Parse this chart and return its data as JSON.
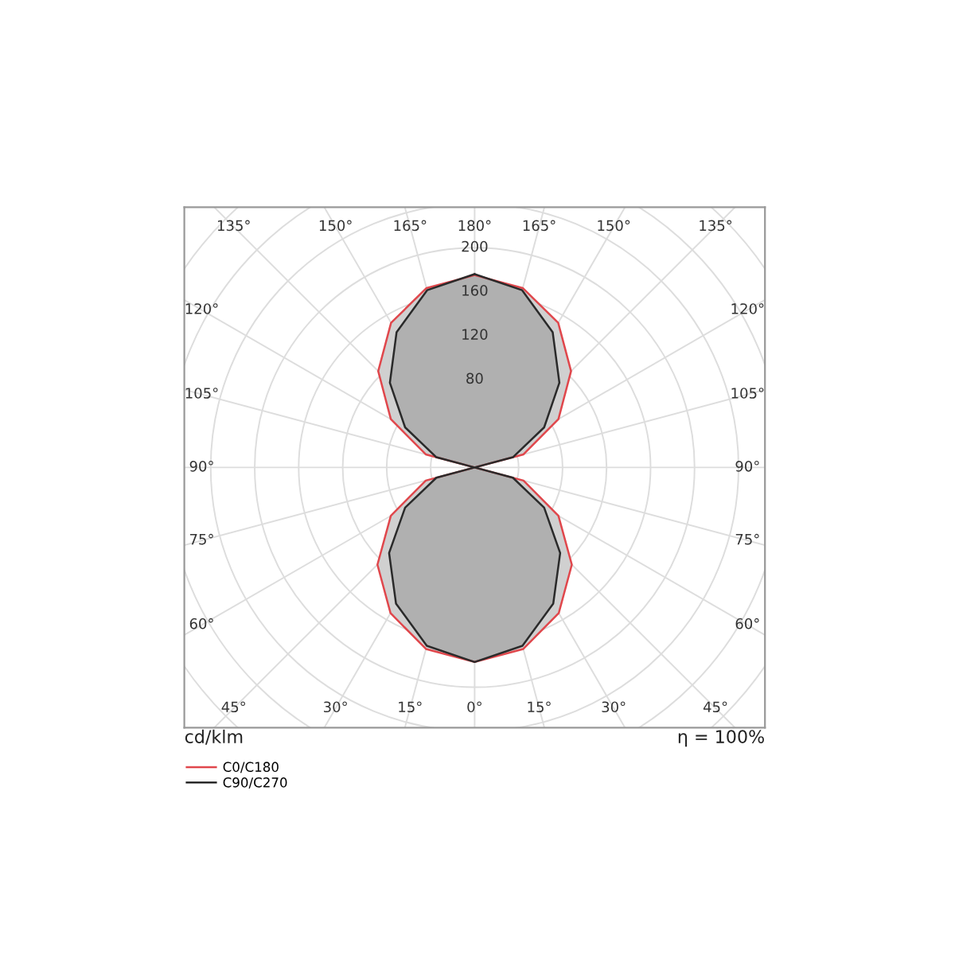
{
  "chart_data": {
    "type": "radar",
    "categories": [
      "180°",
      "165°",
      "150°",
      "135°",
      "120°",
      "105°",
      "90°",
      "75°",
      "60°",
      "45°",
      "30°",
      "15°",
      "0°",
      "15°",
      "30°",
      "45°",
      "60°",
      "75°",
      "90°",
      "105°",
      "120°",
      "135°",
      "150°",
      "165°"
    ],
    "series": [
      {
        "name": "C0/C180",
        "color": "#e0474c",
        "values": [
          175,
          169,
          152,
          124,
          88,
          46,
          0,
          46,
          88,
          125,
          153,
          171,
          177,
          171,
          153,
          125,
          88,
          46,
          0,
          46,
          88,
          124,
          152,
          169
        ]
      },
      {
        "name": "C90/C270",
        "color": "#2a2a2a",
        "values": [
          176,
          167,
          142,
          109,
          73,
          36,
          0,
          36,
          73,
          110,
          143,
          168,
          177,
          168,
          143,
          110,
          73,
          36,
          0,
          36,
          73,
          109,
          142,
          167
        ]
      }
    ],
    "ylim": [
      0,
      320
    ],
    "yticks": [
      80,
      120,
      160,
      200
    ],
    "grid": true,
    "legend": "bottom left",
    "annotations": [
      "cd/klm",
      "η = 100%"
    ]
  }
}
